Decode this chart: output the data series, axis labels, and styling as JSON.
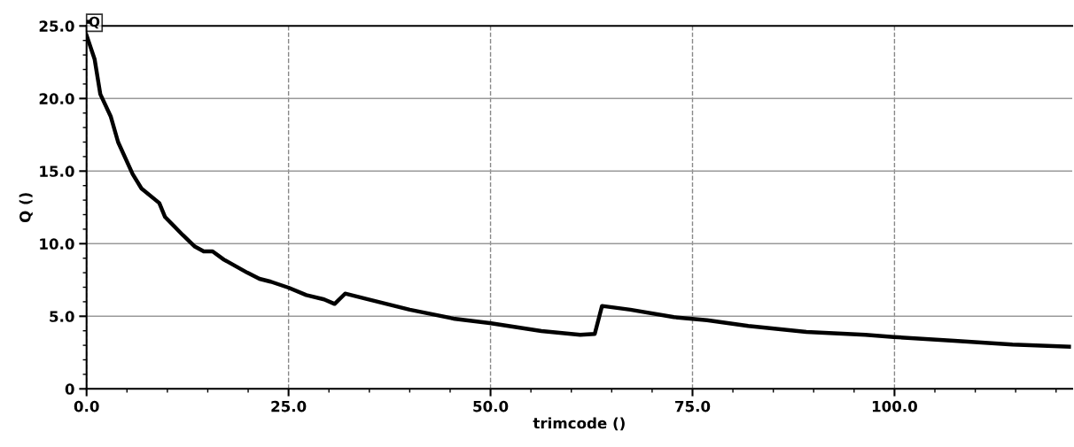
{
  "chart_data": {
    "type": "line",
    "xlabel": "trimcode ()",
    "ylabel": "Q ()",
    "xlim": [
      0,
      122
    ],
    "ylim": [
      0,
      25
    ],
    "xticks": [
      {
        "value": 0,
        "label": "0.0"
      },
      {
        "value": 25,
        "label": "25.0"
      },
      {
        "value": 50,
        "label": "50.0"
      },
      {
        "value": 75,
        "label": "75.0"
      },
      {
        "value": 100,
        "label": "100.0"
      }
    ],
    "yticks": [
      0,
      {
        "value": 5,
        "label": "5.0"
      },
      {
        "value": 10,
        "label": "10.0"
      },
      {
        "value": 15,
        "label": "15.0"
      },
      {
        "value": 20,
        "label": "20.0"
      },
      {
        "value": 25,
        "label": "25.0"
      }
    ],
    "grid": true,
    "legend": "top left",
    "marker": "none",
    "line_style": "solid",
    "series": [
      {
        "name": "Q",
        "color": "#000000",
        "x": [
          0,
          1.0,
          1.7,
          3.0,
          3.9,
          5.7,
          6.8,
          9.0,
          9.7,
          11.9,
          13.4,
          14.5,
          15.6,
          17.0,
          19.9,
          21.4,
          22.8,
          25.0,
          27.2,
          29.4,
          30.7,
          32.0,
          34.5,
          40.0,
          45.4,
          49.9,
          56.3,
          61.1,
          62.9,
          63.8,
          67.3,
          72.7,
          76.8,
          81.9,
          89.1,
          96.4,
          99.9,
          107.4,
          114.6,
          121.6
        ],
        "values": [
          24.35,
          22.7,
          20.3,
          18.75,
          17.0,
          14.8,
          13.8,
          12.8,
          11.85,
          10.6,
          9.8,
          9.47,
          9.47,
          8.9,
          8.0,
          7.58,
          7.38,
          6.97,
          6.46,
          6.16,
          5.85,
          6.56,
          6.22,
          5.45,
          4.84,
          4.53,
          3.98,
          3.72,
          3.78,
          5.71,
          5.45,
          4.94,
          4.73,
          4.33,
          3.92,
          3.72,
          3.57,
          3.31,
          3.05,
          2.9
        ]
      }
    ]
  }
}
